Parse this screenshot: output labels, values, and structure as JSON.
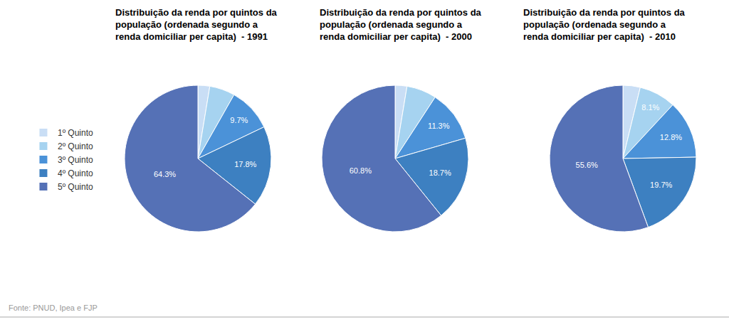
{
  "chart_data": [
    {
      "type": "pie",
      "title": "Distribuição da renda por quintos da\npopulação (ordenada segundo a\nrenda domiciliar per capita)  - 1991",
      "categories": [
        "1º Quinto",
        "2º Quinto",
        "3º Quinto",
        "4º Quinto",
        "5º Quinto"
      ],
      "values": [
        2.6,
        5.6,
        9.7,
        17.8,
        64.3
      ],
      "value_labels": [
        null,
        null,
        "9.7%",
        "17.8%",
        "64.3%"
      ],
      "colors": [
        "#c9def5",
        "#a6d3f0",
        "#4b92d8",
        "#3d80c1",
        "#5571b6"
      ],
      "data_labels": true,
      "legend": "left"
    },
    {
      "type": "pie",
      "title": "Distribuição da renda por quintos da\npopulação (ordenada segundo a\nrenda domiciliar per capita)  - 2000",
      "categories": [
        "1º Quinto",
        "2º Quinto",
        "3º Quinto",
        "4º Quinto",
        "5º Quinto"
      ],
      "values": [
        2.6,
        6.6,
        11.3,
        18.7,
        60.8
      ],
      "value_labels": [
        null,
        null,
        "11.3%",
        "18.7%",
        "60.8%"
      ],
      "colors": [
        "#c9def5",
        "#a6d3f0",
        "#4b92d8",
        "#3d80c1",
        "#5571b6"
      ],
      "data_labels": true,
      "legend": "left"
    },
    {
      "type": "pie",
      "title": "Distribuição da renda por quintos da\npopulação (ordenada segundo a\nrenda domiciliar per capita)  - 2010",
      "categories": [
        "1º Quinto",
        "2º Quinto",
        "3º Quinto",
        "4º Quinto",
        "5º Quinto"
      ],
      "values": [
        3.8,
        8.1,
        12.8,
        19.7,
        55.6
      ],
      "value_labels": [
        null,
        "8.1%",
        "12.8%",
        "19.7%",
        "55.6%"
      ],
      "colors": [
        "#c9def5",
        "#a6d3f0",
        "#4b92d8",
        "#3d80c1",
        "#5571b6"
      ],
      "data_labels": true,
      "legend": "left"
    }
  ],
  "source": "Fonte: PNUD, Ipea e FJP"
}
